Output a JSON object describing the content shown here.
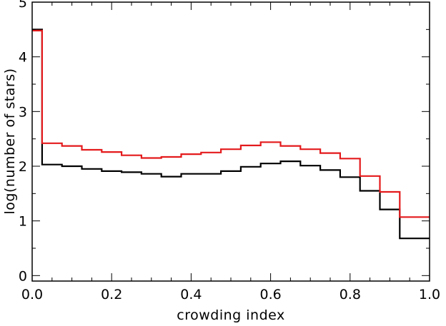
{
  "chart_data": {
    "type": "line",
    "step": true,
    "title": "",
    "xlabel": "crowding index",
    "ylabel": "log(number of stars)",
    "xlim": [
      0.0,
      1.0
    ],
    "ylim": [
      -0.1,
      5.0
    ],
    "x_ticks": [
      0.0,
      0.2,
      0.4,
      0.6,
      0.8,
      1.0
    ],
    "x_tick_labels": [
      "0.0",
      "0.2",
      "0.4",
      "0.6",
      "0.8",
      "1.0"
    ],
    "y_ticks": [
      0,
      1,
      2,
      3,
      4,
      5
    ],
    "y_tick_labels": [
      "0",
      "1",
      "2",
      "3",
      "4",
      "5"
    ],
    "bin_edges": [
      0.0,
      0.025,
      0.075,
      0.125,
      0.175,
      0.225,
      0.275,
      0.325,
      0.375,
      0.425,
      0.475,
      0.525,
      0.575,
      0.625,
      0.675,
      0.725,
      0.775,
      0.825,
      0.875,
      0.925,
      0.975,
      1.0
    ],
    "grid": false,
    "series": [
      {
        "color": "#000000",
        "values": [
          4.5,
          2.03,
          2.0,
          1.95,
          1.91,
          1.89,
          1.86,
          1.81,
          1.86,
          1.86,
          1.91,
          1.99,
          2.05,
          2.09,
          2.01,
          1.93,
          1.8,
          1.55,
          1.21,
          0.68,
          0.68
        ]
      },
      {
        "color": "#e41a1c",
        "values": [
          4.48,
          2.42,
          2.37,
          2.3,
          2.26,
          2.2,
          2.15,
          2.17,
          2.22,
          2.25,
          2.31,
          2.38,
          2.44,
          2.37,
          2.31,
          2.24,
          2.14,
          1.82,
          1.53,
          1.07,
          1.07
        ]
      }
    ]
  }
}
